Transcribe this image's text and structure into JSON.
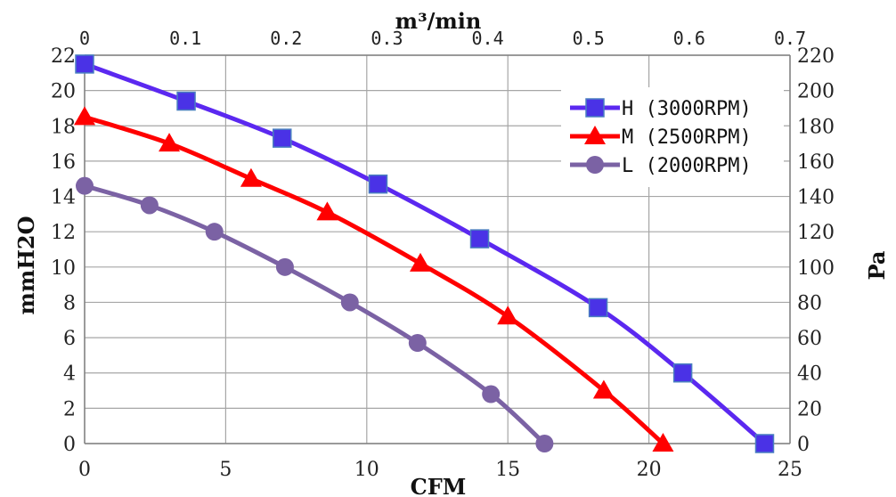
{
  "chart_data": {
    "type": "line",
    "xlabel": "CFM",
    "ylabel": "mmH2O",
    "x2label": "m³/min",
    "y2label": "Pa",
    "xlim": [
      0,
      25
    ],
    "ylim": [
      0,
      22
    ],
    "x2lim": [
      0,
      0.7
    ],
    "y2lim": [
      0,
      220
    ],
    "x_ticks": [
      "0",
      "5",
      "10",
      "15",
      "20",
      "25"
    ],
    "y_ticks": [
      "0",
      "2",
      "4",
      "6",
      "8",
      "10",
      "12",
      "14",
      "16",
      "18",
      "20",
      "22"
    ],
    "x2_ticks": [
      "0",
      "0.1",
      "0.2",
      "0.3",
      "0.4",
      "0.5",
      "0.6",
      "0.7"
    ],
    "y2_ticks": [
      "0",
      "20",
      "40",
      "60",
      "80",
      "100",
      "120",
      "140",
      "160",
      "180",
      "200",
      "220"
    ],
    "grid": true,
    "legend_position": "top-right",
    "series": [
      {
        "name": "H (3000RPM)",
        "color": "#5b28f0",
        "marker_color": "#4a32e6",
        "marker": "square",
        "x": [
          0,
          3.6,
          7.0,
          10.4,
          14.0,
          18.2,
          21.2,
          24.1
        ],
        "y": [
          21.5,
          19.4,
          17.3,
          14.7,
          11.6,
          7.7,
          4.0,
          0
        ]
      },
      {
        "name": "M (2500RPM)",
        "color": "#ff0000",
        "marker_color": "#ff0000",
        "marker": "triangle",
        "x": [
          0,
          3.0,
          5.9,
          8.6,
          11.9,
          15.0,
          18.4,
          20.5
        ],
        "y": [
          18.5,
          17.0,
          15.0,
          13.1,
          10.2,
          7.2,
          3.0,
          0
        ]
      },
      {
        "name": "L (2000RPM)",
        "color": "#7b62a4",
        "marker_color": "#7b62a4",
        "marker": "circle",
        "x": [
          0,
          2.3,
          4.6,
          7.1,
          9.4,
          11.8,
          14.4,
          16.3
        ],
        "y": [
          14.6,
          13.5,
          12.0,
          10.0,
          8.0,
          5.7,
          2.8,
          0
        ]
      }
    ]
  }
}
